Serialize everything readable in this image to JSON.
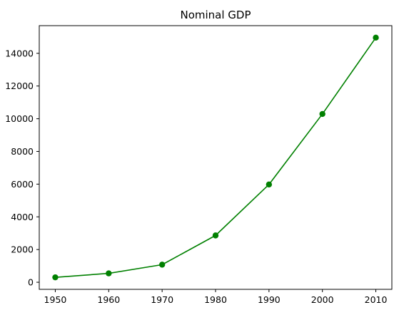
{
  "chart_data": {
    "type": "line",
    "title": "Nominal GDP",
    "xlabel": "",
    "ylabel": "",
    "x": [
      1950,
      1960,
      1970,
      1980,
      1990,
      2000,
      2010
    ],
    "series": [
      {
        "values": [
          300.2,
          543.3,
          1075.9,
          2862.5,
          5979.6,
          10289.7,
          14958.3
        ],
        "color": "#008000",
        "marker": "circle"
      }
    ],
    "xticks": [
      1950,
      1960,
      1970,
      1980,
      1990,
      2000,
      2010
    ],
    "yticks": [
      0,
      2000,
      4000,
      6000,
      8000,
      10000,
      12000,
      14000
    ],
    "xlim": [
      1947,
      2013
    ],
    "ylim": [
      -433,
      15691
    ],
    "grid": false,
    "legend": "none"
  }
}
